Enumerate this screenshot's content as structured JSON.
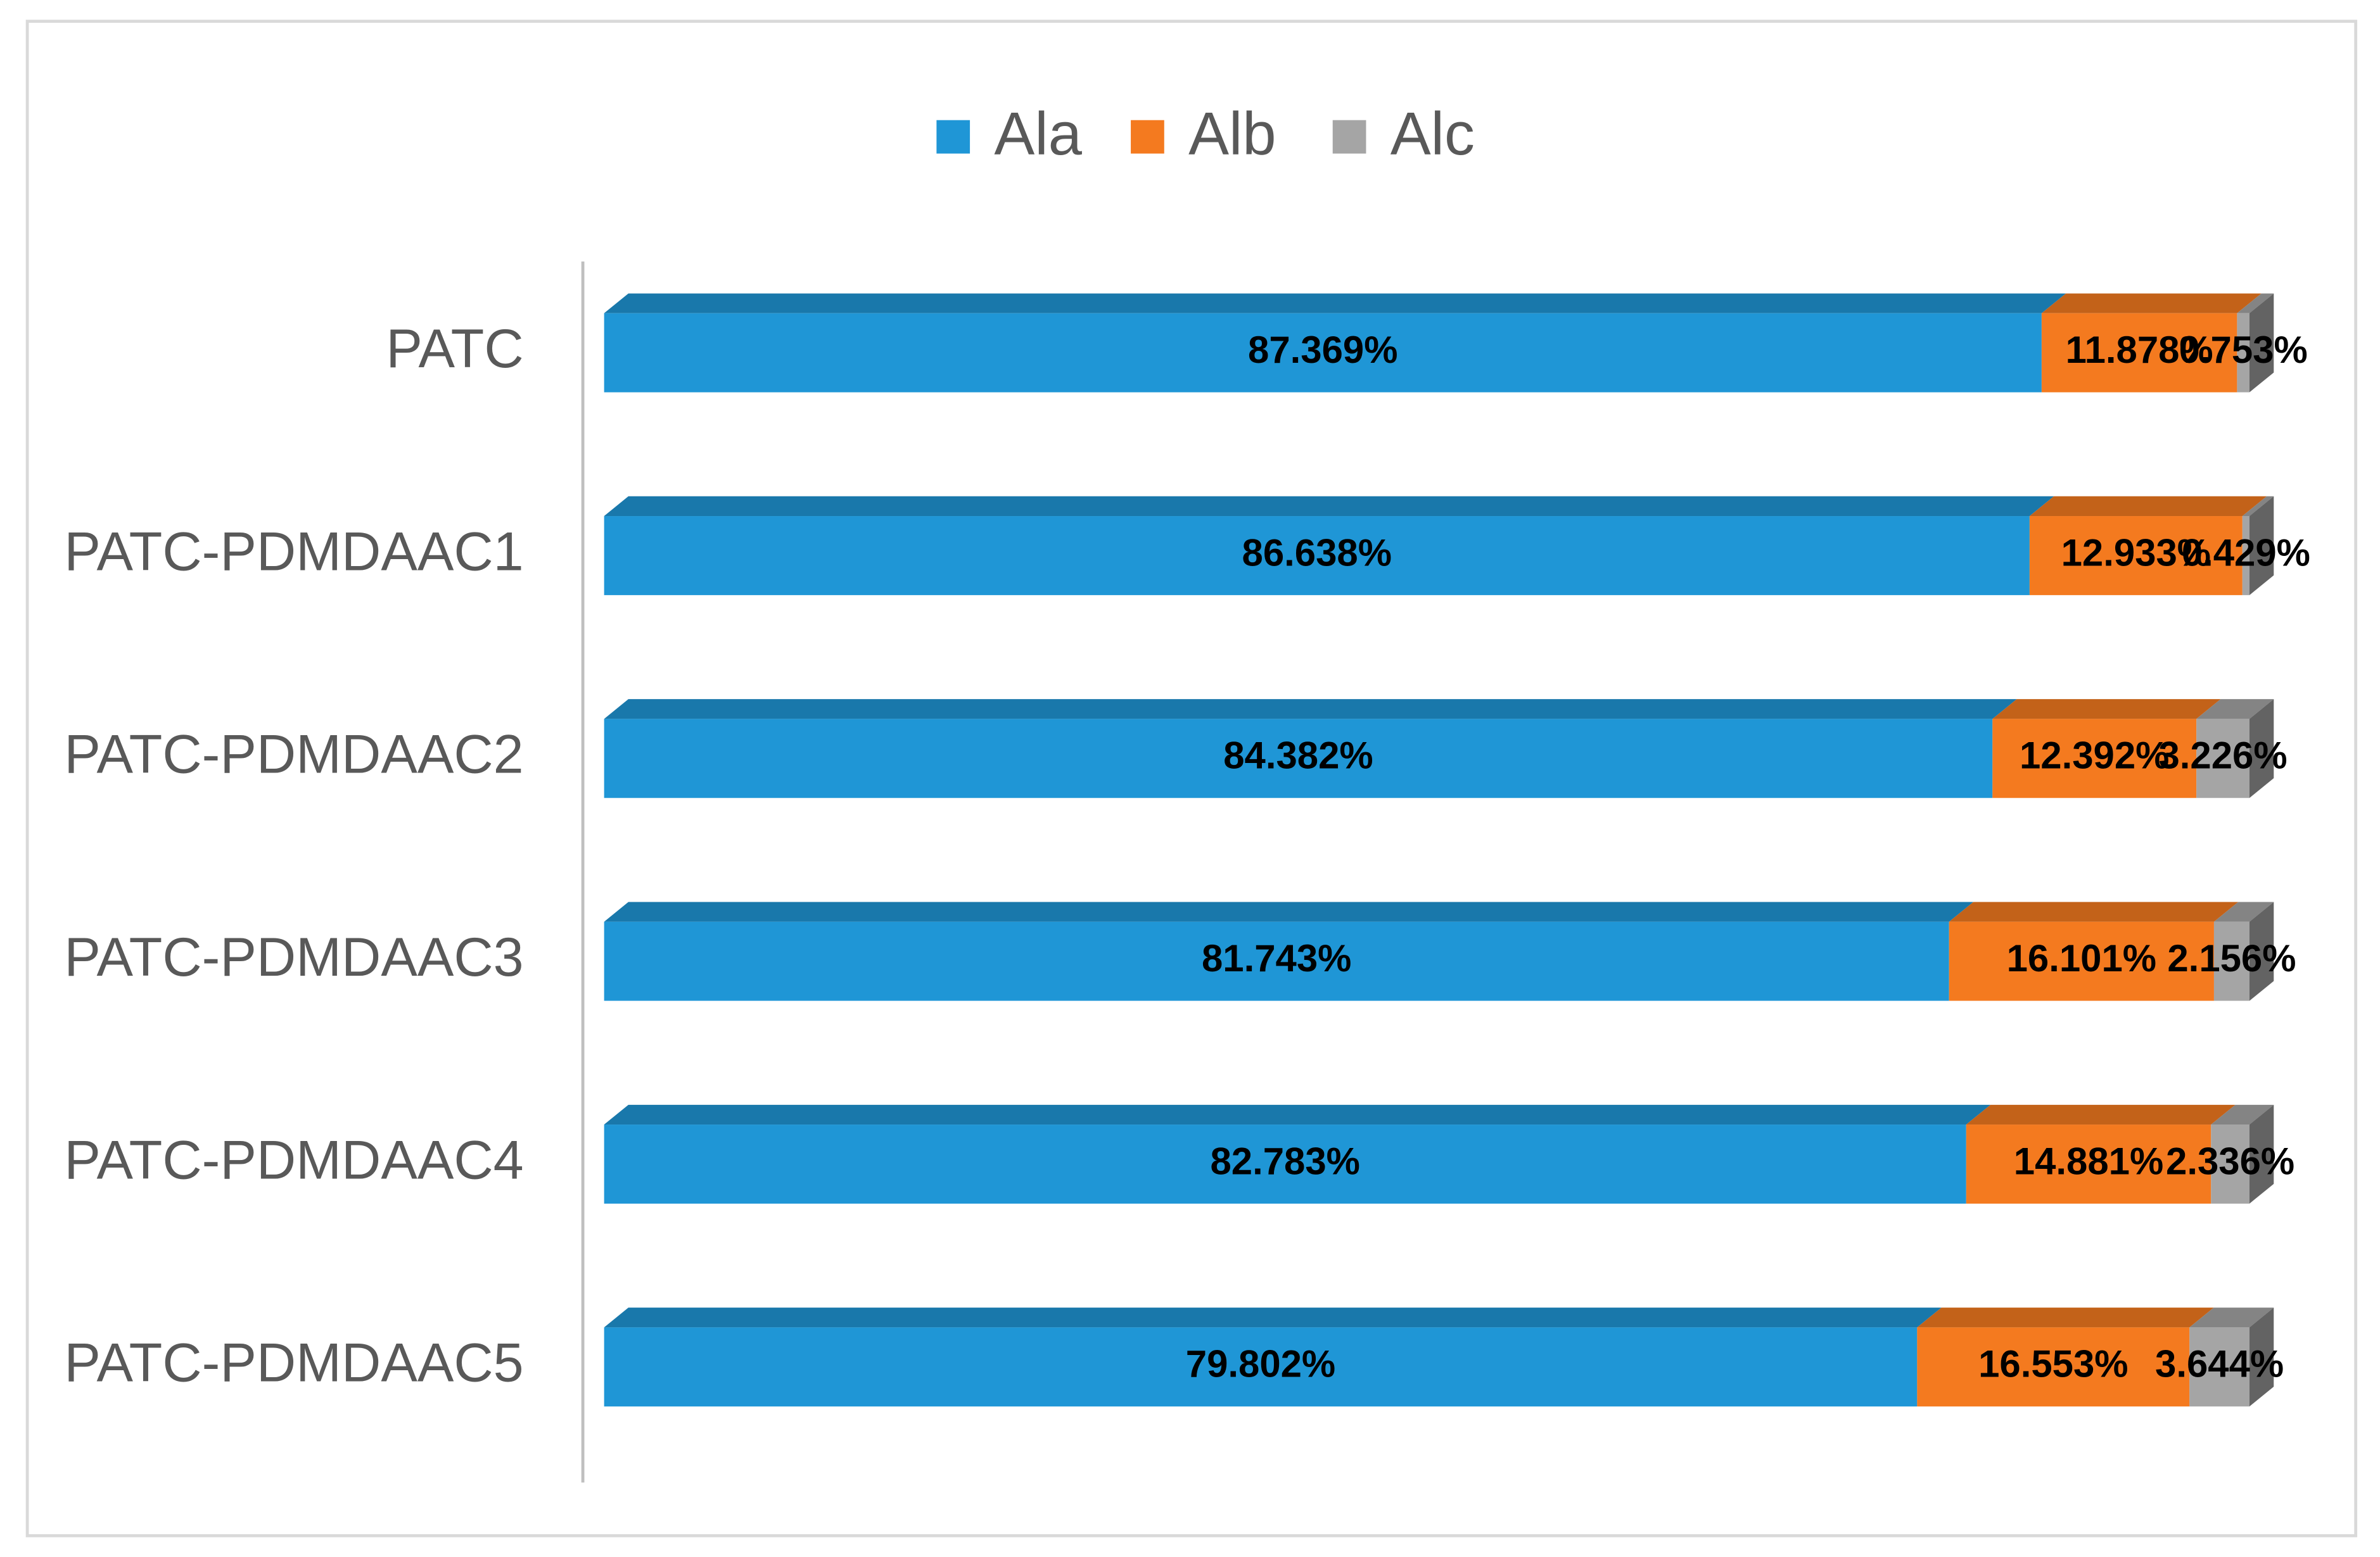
{
  "chart_data": {
    "type": "bar",
    "orientation": "horizontal",
    "stacked": true,
    "categories": [
      "PATC",
      "PATC-PDMDAAC1",
      "PATC-PDMDAAC2",
      "PATC-PDMDAAC3",
      "PATC-PDMDAAC4",
      "PATC-PDMDAAC5"
    ],
    "xlim": [
      0,
      100
    ],
    "series": [
      {
        "name": "Ala",
        "color": "#1f96d6",
        "values": [
          87.369,
          86.638,
          84.382,
          81.743,
          82.783,
          79.802
        ],
        "value_labels": [
          "87.369%",
          "86.638%",
          "84.382%",
          "81.743%",
          "82.783%",
          "79.802%"
        ]
      },
      {
        "name": "Alb",
        "color": "#f47a1f",
        "values": [
          11.878,
          12.933,
          12.392,
          16.101,
          14.881,
          16.553
        ],
        "value_labels": [
          "11.878%",
          "12.933%",
          "12.392%",
          "16.101%",
          "14.881%",
          "16.553%"
        ]
      },
      {
        "name": "Alc",
        "color": "#a5a5a5",
        "values": [
          0.753,
          0.429,
          3.226,
          2.156,
          2.336,
          3.644
        ],
        "value_labels": [
          "0.753%",
          "0.429%",
          "3.226%",
          "2.156%",
          "2.336%",
          "3.644%"
        ]
      }
    ],
    "legend": "top"
  }
}
